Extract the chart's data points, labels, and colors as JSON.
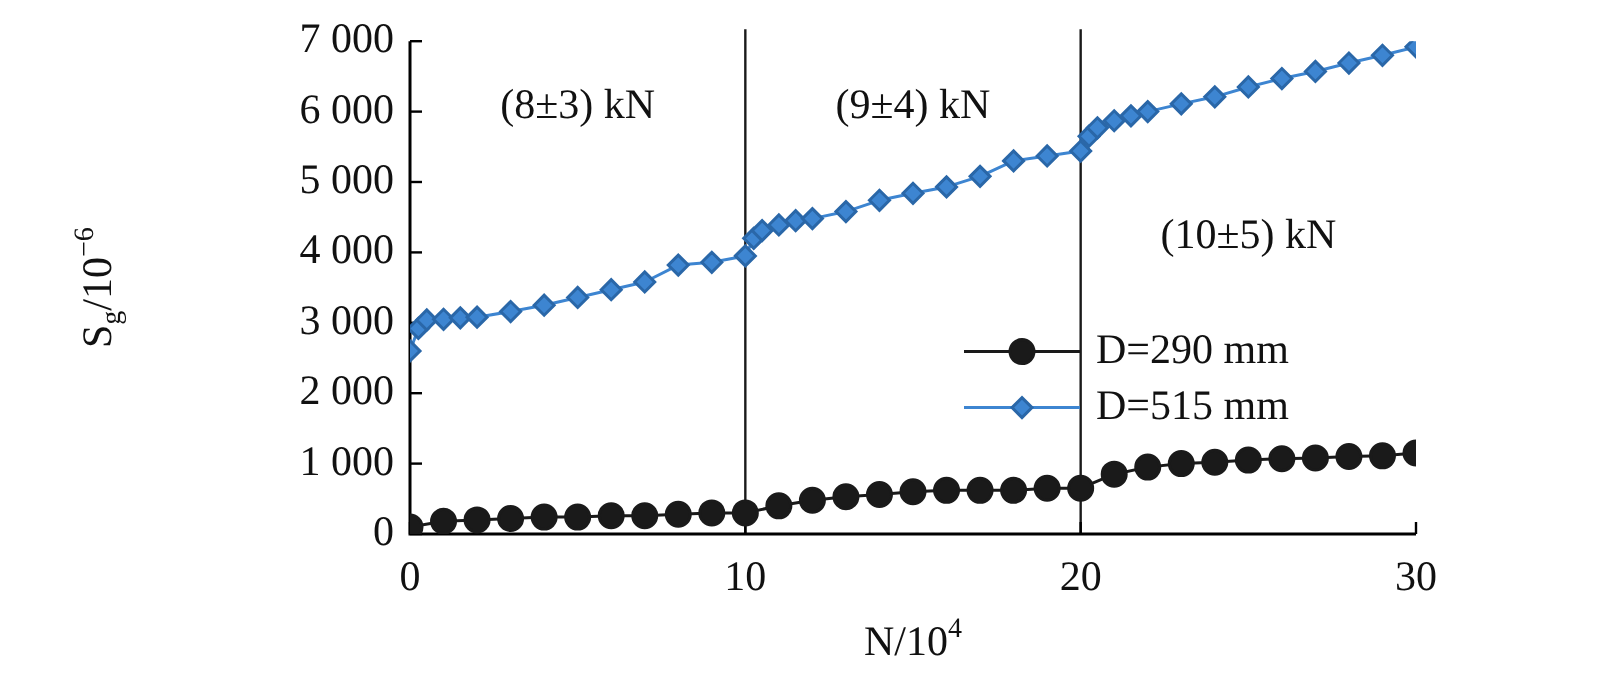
{
  "chart_data": {
    "type": "line",
    "xlabel": "N/10$^{4}$",
    "ylabel": "S$_{g}$/10$^{−6}$",
    "xlim": [
      0,
      30
    ],
    "xticks": [
      0,
      10,
      20,
      30
    ],
    "ylim": [
      0,
      7000
    ],
    "yticks": [
      0,
      {
        "value": 1000,
        "label": "1 000"
      },
      {
        "value": 2000,
        "label": "2 000"
      },
      {
        "value": 3000,
        "label": "3 000"
      },
      {
        "value": 4000,
        "label": "4 000"
      },
      {
        "value": 5000,
        "label": "5 000"
      },
      {
        "value": 6000,
        "label": "6 000"
      },
      {
        "value": 7000,
        "label": "7 000"
      }
    ],
    "grid": false,
    "legend": "right",
    "series": [
      {
        "name": "D=290 mm",
        "color": "#1a1a1a",
        "marker": "circle",
        "x": [
          0,
          1,
          2,
          3,
          4,
          5,
          6,
          7,
          8,
          9,
          10,
          11,
          12,
          13,
          14,
          15,
          16,
          17,
          18,
          19,
          20,
          21,
          22,
          23,
          24,
          25,
          26,
          27,
          28,
          29,
          30
        ],
        "values": [
          100,
          180,
          200,
          220,
          240,
          240,
          260,
          260,
          280,
          300,
          300,
          400,
          480,
          530,
          560,
          600,
          620,
          620,
          620,
          650,
          650,
          850,
          950,
          1000,
          1020,
          1050,
          1070,
          1080,
          1100,
          1110,
          1150
        ]
      },
      {
        "name": "D=515 mm",
        "color": "#3d85d1",
        "marker": "diamond",
        "x": [
          0,
          0.25,
          0.5,
          1,
          1.5,
          2,
          3,
          4,
          5,
          6,
          7,
          8,
          9,
          10,
          10.25,
          10.5,
          11,
          11.5,
          12,
          13,
          14,
          15,
          16,
          17,
          18,
          19,
          20,
          20.25,
          20.5,
          21,
          21.5,
          22,
          23,
          24,
          25,
          26,
          27,
          28,
          29,
          30
        ],
        "values": [
          2600,
          2920,
          3040,
          3050,
          3070,
          3080,
          3160,
          3250,
          3360,
          3470,
          3580,
          3820,
          3860,
          3950,
          4200,
          4310,
          4390,
          4450,
          4480,
          4580,
          4740,
          4840,
          4930,
          5080,
          5300,
          5370,
          5440,
          5650,
          5770,
          5870,
          5940,
          6000,
          6110,
          6210,
          6350,
          6470,
          6570,
          6690,
          6800,
          6920
        ]
      }
    ],
    "ref_lines": [
      {
        "axis": "x",
        "value": 10,
        "color": "#1a1a1a"
      },
      {
        "axis": "x",
        "value": 20,
        "color": "#1a1a1a"
      }
    ],
    "annotations": [
      "(8±3) kN",
      "(9±4) kN",
      "(10±5) kN"
    ]
  }
}
